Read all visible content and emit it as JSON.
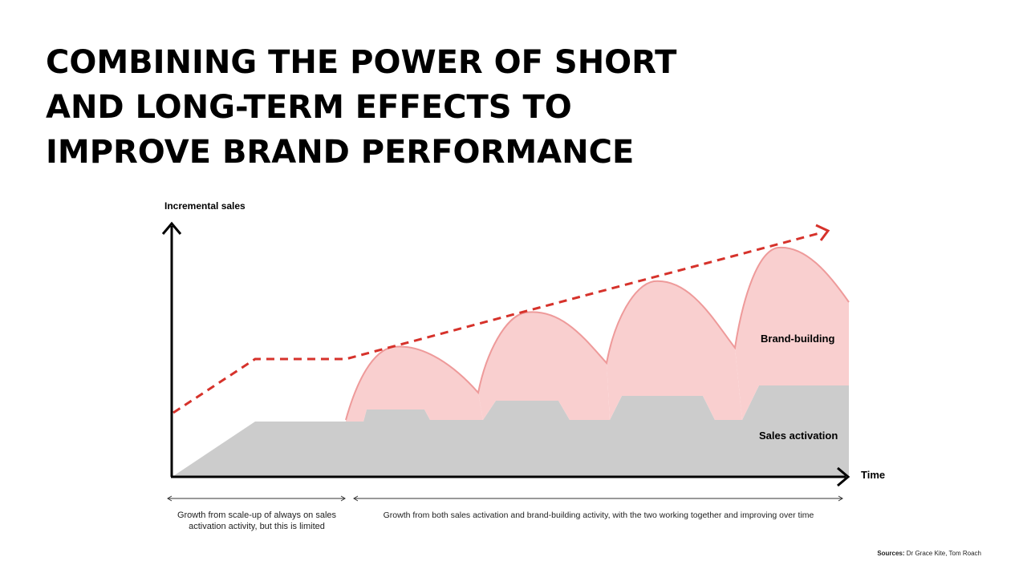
{
  "slide": {
    "title_lines": [
      "COMBINING THE POWER OF SHORT",
      "AND LONG-TERM EFFECTS TO",
      "IMPROVE BRAND PERFORMANCE"
    ],
    "sources_label": "Sources:",
    "sources_text": "Dr Grace Kite, Tom Roach"
  },
  "diagram": {
    "y_axis_label": "Incremental sales",
    "x_axis_label": "Time",
    "brand_building_label": "Brand-building",
    "sales_activation_label": "Sales activation",
    "phase_1_text_line1": "Growth from scale-up of always on sales",
    "phase_1_text_line2": "activation activity, but this is limited",
    "phase_2_text": "Growth from both sales activation and brand-building activity, with the two working together and improving over time",
    "colors": {
      "sales_fill": "#cccccc",
      "brand_fill": "#f9cfcf",
      "brand_stroke": "#ee9a9a",
      "trend_line": "#d6322b",
      "axis": "#000000"
    }
  }
}
